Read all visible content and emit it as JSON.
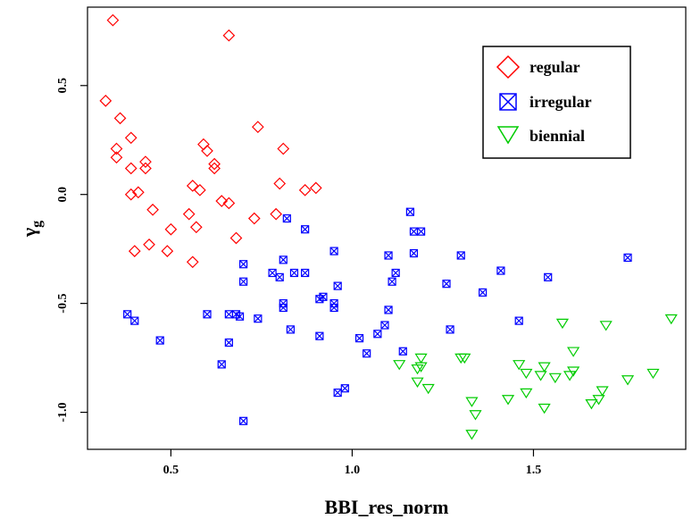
{
  "chart_data": {
    "type": "scatter",
    "title": "",
    "xlabel": "BBI_res_norm",
    "ylabel_main": "γ",
    "ylabel_sub": "g",
    "xlim": [
      0.27,
      1.92
    ],
    "ylim": [
      -1.17,
      0.86
    ],
    "xticks": [
      0.5,
      1.0,
      1.5
    ],
    "xtick_labels": [
      "0.5",
      "1.0",
      "1.5"
    ],
    "yticks": [
      0.5,
      0.0,
      -0.5,
      -1.0
    ],
    "ytick_labels": [
      "0.5",
      "0.0",
      "-0.5",
      "-1.0"
    ],
    "grid": false,
    "legend_position": "top-right",
    "series": [
      {
        "name": "regular",
        "marker": "diamond",
        "color": "#ff0000",
        "points": [
          [
            0.34,
            0.8
          ],
          [
            0.66,
            0.73
          ],
          [
            0.32,
            0.43
          ],
          [
            0.36,
            0.35
          ],
          [
            0.74,
            0.31
          ],
          [
            0.35,
            0.21
          ],
          [
            0.39,
            0.26
          ],
          [
            0.59,
            0.23
          ],
          [
            0.81,
            0.21
          ],
          [
            0.6,
            0.2
          ],
          [
            0.35,
            0.17
          ],
          [
            0.62,
            0.14
          ],
          [
            0.43,
            0.15
          ],
          [
            0.62,
            0.12
          ],
          [
            0.39,
            0.12
          ],
          [
            0.43,
            0.12
          ],
          [
            0.8,
            0.05
          ],
          [
            0.56,
            0.04
          ],
          [
            0.9,
            0.03
          ],
          [
            0.87,
            0.02
          ],
          [
            0.58,
            0.02
          ],
          [
            0.41,
            0.01
          ],
          [
            0.39,
            0.0
          ],
          [
            0.64,
            -0.03
          ],
          [
            0.66,
            -0.04
          ],
          [
            0.45,
            -0.07
          ],
          [
            0.55,
            -0.09
          ],
          [
            0.79,
            -0.09
          ],
          [
            0.73,
            -0.11
          ],
          [
            0.5,
            -0.16
          ],
          [
            0.57,
            -0.15
          ],
          [
            0.68,
            -0.2
          ],
          [
            0.44,
            -0.23
          ],
          [
            0.4,
            -0.26
          ],
          [
            0.49,
            -0.26
          ],
          [
            0.56,
            -0.31
          ]
        ]
      },
      {
        "name": "irregular",
        "marker": "boxx",
        "color": "#0000ff",
        "points": [
          [
            1.16,
            -0.08
          ],
          [
            0.82,
            -0.11
          ],
          [
            1.17,
            -0.17
          ],
          [
            1.19,
            -0.17
          ],
          [
            0.87,
            -0.16
          ],
          [
            0.95,
            -0.26
          ],
          [
            1.1,
            -0.28
          ],
          [
            1.17,
            -0.27
          ],
          [
            1.3,
            -0.28
          ],
          [
            1.76,
            -0.29
          ],
          [
            0.7,
            -0.32
          ],
          [
            0.81,
            -0.3
          ],
          [
            1.41,
            -0.35
          ],
          [
            0.78,
            -0.36
          ],
          [
            0.8,
            -0.38
          ],
          [
            0.84,
            -0.36
          ],
          [
            0.87,
            -0.36
          ],
          [
            1.12,
            -0.36
          ],
          [
            1.54,
            -0.38
          ],
          [
            0.7,
            -0.4
          ],
          [
            1.11,
            -0.4
          ],
          [
            0.96,
            -0.42
          ],
          [
            1.26,
            -0.41
          ],
          [
            1.36,
            -0.45
          ],
          [
            0.92,
            -0.47
          ],
          [
            0.91,
            -0.48
          ],
          [
            0.95,
            -0.5
          ],
          [
            0.81,
            -0.5
          ],
          [
            0.81,
            -0.52
          ],
          [
            0.95,
            -0.52
          ],
          [
            1.1,
            -0.53
          ],
          [
            0.38,
            -0.55
          ],
          [
            0.6,
            -0.55
          ],
          [
            0.66,
            -0.55
          ],
          [
            0.68,
            -0.55
          ],
          [
            0.69,
            -0.56
          ],
          [
            0.74,
            -0.57
          ],
          [
            0.4,
            -0.58
          ],
          [
            1.46,
            -0.58
          ],
          [
            1.09,
            -0.6
          ],
          [
            0.83,
            -0.62
          ],
          [
            1.27,
            -0.62
          ],
          [
            1.07,
            -0.64
          ],
          [
            0.91,
            -0.65
          ],
          [
            1.02,
            -0.66
          ],
          [
            0.47,
            -0.67
          ],
          [
            0.66,
            -0.68
          ],
          [
            1.14,
            -0.72
          ],
          [
            1.04,
            -0.73
          ],
          [
            0.64,
            -0.78
          ],
          [
            0.98,
            -0.89
          ],
          [
            0.96,
            -0.91
          ],
          [
            0.7,
            -1.04
          ]
        ]
      },
      {
        "name": "biennial",
        "marker": "triangle-down",
        "color": "#00cc00",
        "points": [
          [
            1.88,
            -0.57
          ],
          [
            1.58,
            -0.59
          ],
          [
            1.7,
            -0.6
          ],
          [
            1.61,
            -0.72
          ],
          [
            1.31,
            -0.75
          ],
          [
            1.3,
            -0.75
          ],
          [
            1.19,
            -0.75
          ],
          [
            1.13,
            -0.78
          ],
          [
            1.46,
            -0.78
          ],
          [
            1.19,
            -0.79
          ],
          [
            1.53,
            -0.79
          ],
          [
            1.18,
            -0.8
          ],
          [
            1.61,
            -0.81
          ],
          [
            1.83,
            -0.82
          ],
          [
            1.48,
            -0.82
          ],
          [
            1.6,
            -0.83
          ],
          [
            1.52,
            -0.83
          ],
          [
            1.56,
            -0.84
          ],
          [
            1.76,
            -0.85
          ],
          [
            1.18,
            -0.86
          ],
          [
            1.21,
            -0.89
          ],
          [
            1.69,
            -0.9
          ],
          [
            1.48,
            -0.91
          ],
          [
            1.43,
            -0.94
          ],
          [
            1.68,
            -0.94
          ],
          [
            1.33,
            -0.95
          ],
          [
            1.66,
            -0.96
          ],
          [
            1.53,
            -0.98
          ],
          [
            1.34,
            -1.01
          ],
          [
            1.33,
            -1.1
          ]
        ]
      }
    ]
  }
}
